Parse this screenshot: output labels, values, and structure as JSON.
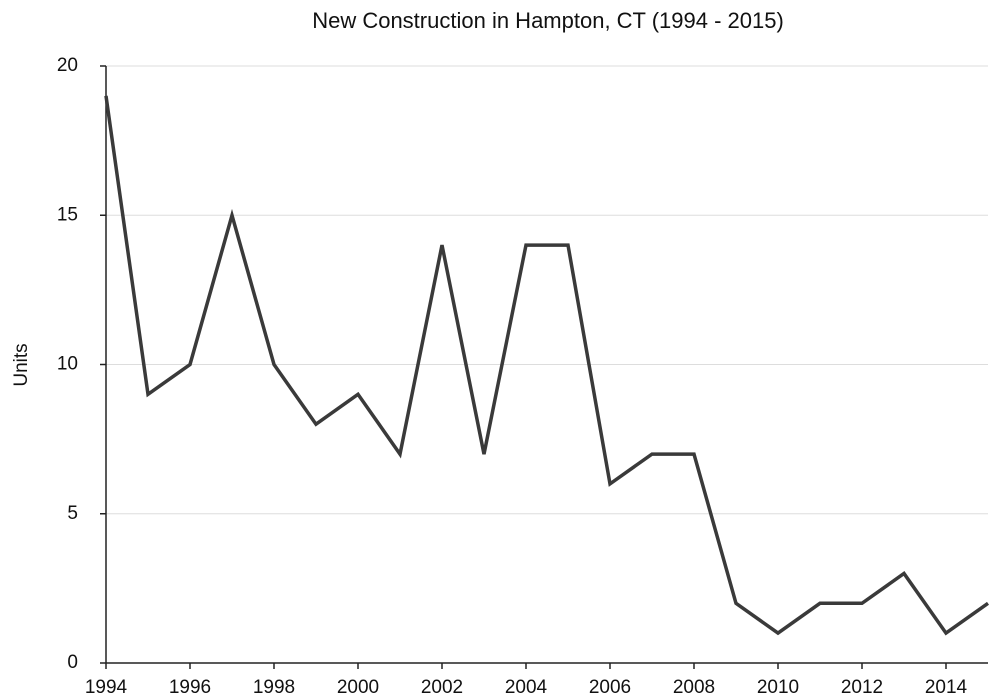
{
  "chart_data": {
    "type": "line",
    "title": "New Construction in Hampton, CT (1994 - 2015)",
    "ylabel": "Units",
    "x": [
      1994,
      1995,
      1996,
      1997,
      1998,
      1999,
      2000,
      2001,
      2002,
      2003,
      2004,
      2005,
      2006,
      2007,
      2008,
      2009,
      2010,
      2011,
      2012,
      2013,
      2014,
      2015
    ],
    "series": [
      {
        "name": "Units",
        "color": "#3a3a3a",
        "values": [
          19,
          9,
          10,
          15,
          10,
          8,
          9,
          7,
          14,
          7,
          14,
          14,
          6,
          7,
          7,
          2,
          1,
          2,
          2,
          3,
          1,
          2
        ]
      }
    ],
    "xlim": [
      1994,
      2015
    ],
    "xticks": [
      1994,
      1996,
      1998,
      2000,
      2002,
      2004,
      2006,
      2008,
      2010,
      2012,
      2014
    ],
    "ylim": [
      0,
      20
    ],
    "yticks": [
      0,
      5,
      10,
      15,
      20
    ],
    "grid": true
  }
}
